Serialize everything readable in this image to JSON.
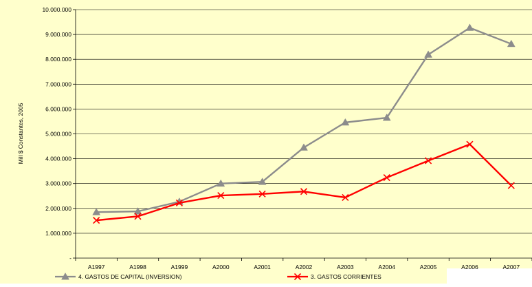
{
  "chart_data": {
    "type": "line",
    "categories": [
      "A1997",
      "A1998",
      "A1999",
      "A2000",
      "A2001",
      "A2002",
      "A2003",
      "A2004",
      "A2005",
      "A2006",
      "A2007"
    ],
    "ylabel": "Mill $ Constantes, 2005",
    "xlabel": "",
    "ylim": [
      0,
      10000000
    ],
    "y_ticks": [
      {
        "value": 0,
        "label": "-"
      },
      {
        "value": 1000000,
        "label": "1.000.000"
      },
      {
        "value": 2000000,
        "label": "2.000.000"
      },
      {
        "value": 3000000,
        "label": "3.000.000"
      },
      {
        "value": 4000000,
        "label": "4.000.000"
      },
      {
        "value": 5000000,
        "label": "5.000.000"
      },
      {
        "value": 6000000,
        "label": "6.000.000"
      },
      {
        "value": 7000000,
        "label": "7.000.000"
      },
      {
        "value": 8000000,
        "label": "8.000.000"
      },
      {
        "value": 9000000,
        "label": "9.000.000"
      },
      {
        "value": 10000000,
        "label": "10.000.000"
      }
    ],
    "grid": "horizontal",
    "legend_position": "bottom",
    "series": [
      {
        "name": "4.  GASTOS DE CAPITAL (INVERSION)",
        "color": "#8c8c8c",
        "marker": "triangle",
        "values": [
          1850000,
          1880000,
          2270000,
          3000000,
          3070000,
          4450000,
          5460000,
          5650000,
          8190000,
          9270000,
          8620000
        ]
      },
      {
        "name": "3.  GASTOS CORRIENTES",
        "color": "#ff0000",
        "marker": "x",
        "values": [
          1520000,
          1680000,
          2220000,
          2520000,
          2580000,
          2680000,
          2440000,
          3240000,
          3920000,
          4580000,
          2920000
        ]
      }
    ],
    "colors": {
      "plot_background": "#ffffcc",
      "page_background": "#ffffff",
      "gridline": "#000000"
    }
  }
}
